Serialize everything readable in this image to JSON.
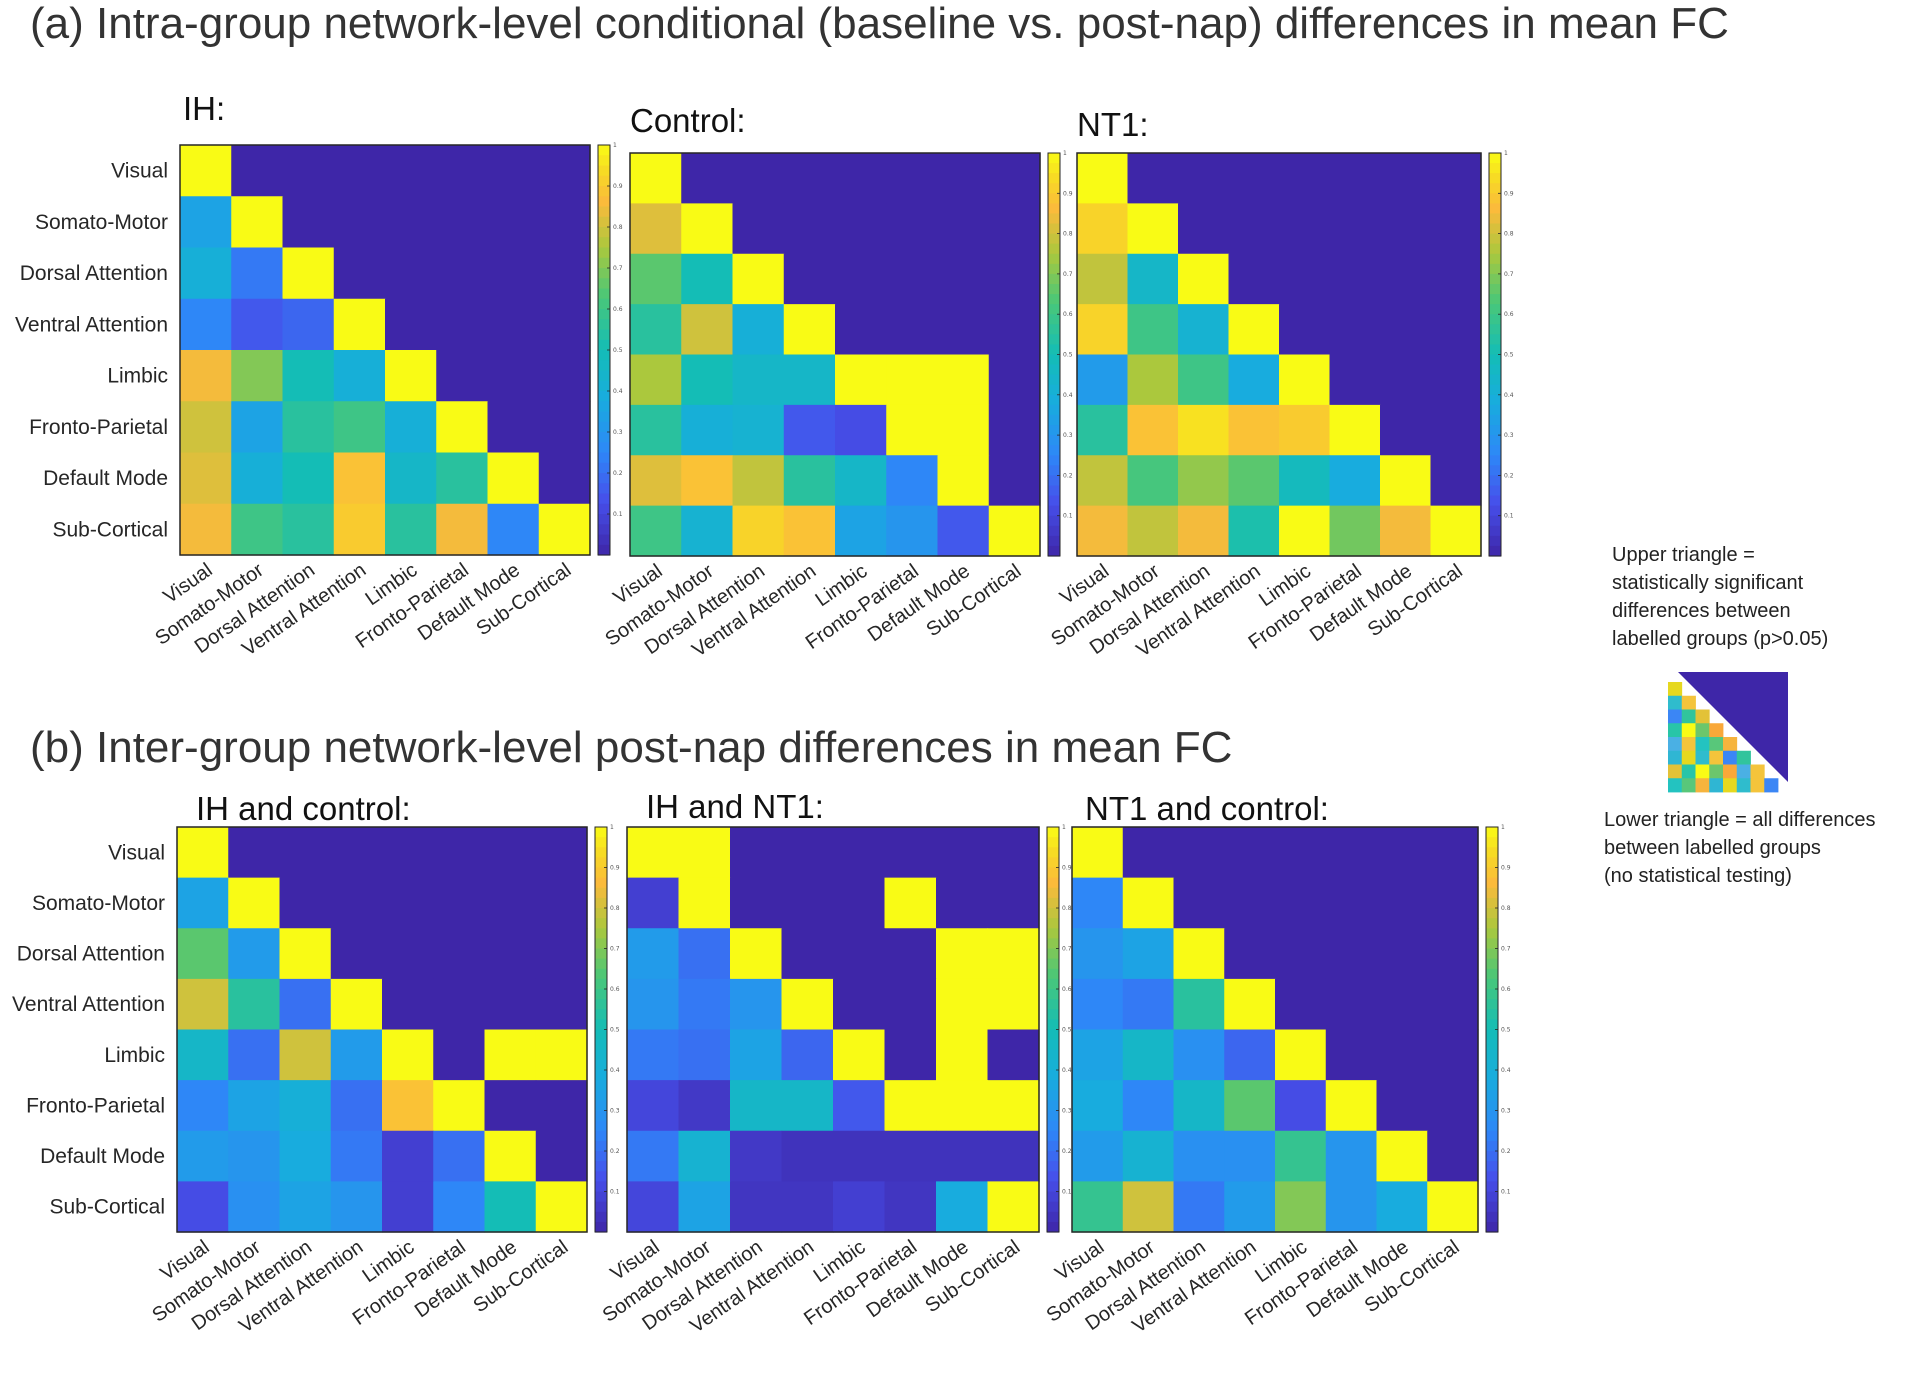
{
  "panel_a_title": "(a) Intra-group network-level conditional (baseline vs. post-nap) differences in mean FC",
  "panel_b_title": "(b) Inter-group network-level post-nap differences in mean FC",
  "colors": {
    "low": "#3e26a8",
    "mid": "#14b7c5",
    "high": "#f9fb15",
    "plot_bg": "#3e26a8"
  },
  "legend": {
    "upper_text": [
      "Upper triangle =",
      "statistically significant",
      "differences between",
      "labelled groups (p>0.05)"
    ],
    "lower_text": [
      "Lower triangle = all differences",
      "between labelled groups",
      " (no statistical testing)"
    ],
    "icon_lower_colors": [
      "#e6d81f",
      "#2fbccd",
      "#f4c43b",
      "#3b86f5",
      "#31c49c",
      "#e3c237",
      "#28c5a8",
      "#f9fb15",
      "#6cc66c",
      "#f9a839",
      "#4ab0e4",
      "#f4c43b",
      "#23c3c0",
      "#58c77a",
      "#f6b43d",
      "#2fb6d3"
    ]
  },
  "chart_data": [
    {
      "type": "heatmap",
      "title": "IH:",
      "panel": "a",
      "row_labels": [
        "Visual",
        "Somato-Motor",
        "Dorsal Attention",
        "Ventral Attention",
        "Limbic",
        "Fronto-Parietal",
        "Default Mode",
        "Sub-Cortical"
      ],
      "col_labels": [
        "Visual",
        "Somato-Motor",
        "Dorsal Attention",
        "Ventral Attention",
        "Limbic",
        "Fronto-Parietal",
        "Default Mode",
        "Sub-Cortical"
      ],
      "colorbar": {
        "min": 0,
        "max": 1,
        "ticks": [
          0.1,
          0.2,
          0.3,
          0.4,
          0.5,
          0.6,
          0.7,
          0.8,
          0.9,
          1
        ]
      },
      "values": [
        [
          1,
          0,
          0,
          0,
          0,
          0,
          0,
          0
        ],
        [
          0.35,
          1,
          0,
          0,
          0,
          0,
          0,
          0
        ],
        [
          0.4,
          0.22,
          1,
          0,
          0,
          0,
          0,
          0
        ],
        [
          0.25,
          0.15,
          0.18,
          1,
          0,
          0,
          0,
          0
        ],
        [
          0.85,
          0.7,
          0.5,
          0.4,
          1,
          0,
          0,
          0
        ],
        [
          0.8,
          0.35,
          0.55,
          0.6,
          0.4,
          1,
          0,
          0
        ],
        [
          0.82,
          0.4,
          0.5,
          0.88,
          0.45,
          0.55,
          1,
          0
        ],
        [
          0.85,
          0.6,
          0.55,
          0.9,
          0.55,
          0.85,
          0.25,
          1
        ]
      ]
    },
    {
      "type": "heatmap",
      "title": "Control:",
      "panel": "a",
      "row_labels": [
        "",
        "",
        "",
        "",
        "",
        "",
        "",
        ""
      ],
      "col_labels": [
        "Visual",
        "Somato-Motor",
        "Dorsal Attention",
        "Ventral Attention",
        "Limbic",
        "Fronto-Parietal",
        "Default Mode",
        "Sub-Cortical"
      ],
      "colorbar": {
        "min": 0,
        "max": 1,
        "ticks": [
          0.1,
          0.2,
          0.3,
          0.4,
          0.5,
          0.6,
          0.7,
          0.8,
          0.9,
          1
        ]
      },
      "values": [
        [
          1,
          0,
          0,
          0,
          0,
          0,
          0,
          0
        ],
        [
          0.82,
          1,
          0,
          0,
          0,
          0,
          0,
          0
        ],
        [
          0.65,
          0.5,
          1,
          0,
          0,
          0,
          0,
          0
        ],
        [
          0.55,
          0.8,
          0.4,
          1,
          0,
          0,
          0,
          0
        ],
        [
          0.75,
          0.5,
          0.45,
          0.45,
          1,
          1,
          1,
          0
        ],
        [
          0.55,
          0.4,
          0.42,
          0.15,
          0.12,
          1,
          1,
          0
        ],
        [
          0.82,
          0.88,
          0.78,
          0.55,
          0.45,
          0.25,
          1,
          0
        ],
        [
          0.6,
          0.42,
          0.92,
          0.88,
          0.35,
          0.3,
          0.15,
          1
        ]
      ]
    },
    {
      "type": "heatmap",
      "title": "NT1:",
      "panel": "a",
      "row_labels": [
        "",
        "",
        "",
        "",
        "",
        "",
        "",
        ""
      ],
      "col_labels": [
        "Visual",
        "Somato-Motor",
        "Dorsal Attention",
        "Ventral Attention",
        "Limbic",
        "Fronto-Parietal",
        "Default Mode",
        "Sub-Cortical"
      ],
      "colorbar": {
        "min": 0,
        "max": 1,
        "ticks": [
          0.1,
          0.2,
          0.3,
          0.4,
          0.5,
          0.6,
          0.7,
          0.8,
          0.9,
          1
        ]
      },
      "values": [
        [
          1,
          0,
          0,
          0,
          0,
          0,
          0,
          0
        ],
        [
          0.92,
          1,
          0,
          0,
          0,
          0,
          0,
          0
        ],
        [
          0.78,
          0.45,
          1,
          0,
          0,
          0,
          0,
          0
        ],
        [
          0.92,
          0.6,
          0.42,
          1,
          0,
          0,
          0,
          0
        ],
        [
          0.32,
          0.75,
          0.6,
          0.38,
          1,
          0,
          0,
          0
        ],
        [
          0.55,
          0.88,
          0.95,
          0.88,
          0.9,
          1,
          0,
          0
        ],
        [
          0.78,
          0.62,
          0.72,
          0.65,
          0.48,
          0.38,
          1,
          0
        ],
        [
          0.85,
          0.78,
          0.85,
          0.52,
          1,
          0.68,
          0.85,
          1
        ]
      ]
    },
    {
      "type": "heatmap",
      "title": "IH and control:",
      "panel": "b",
      "row_labels": [
        "Visual",
        "Somato-Motor",
        "Dorsal Attention",
        "Ventral Attention",
        "Limbic",
        "Fronto-Parietal",
        "Default Mode",
        "Sub-Cortical"
      ],
      "col_labels": [
        "Visual",
        "Somato-Motor",
        "Dorsal Attention",
        "Ventral Attention",
        "Limbic",
        "Fronto-Parietal",
        "Default Mode",
        "Sub-Cortical"
      ],
      "colorbar": {
        "min": 0,
        "max": 1,
        "ticks": [
          0.1,
          0.2,
          0.3,
          0.4,
          0.5,
          0.6,
          0.7,
          0.8,
          0.9,
          1
        ]
      },
      "values": [
        [
          1,
          0,
          0,
          0,
          0,
          0,
          0,
          0
        ],
        [
          0.35,
          1,
          0,
          0,
          0,
          0,
          0,
          0
        ],
        [
          0.65,
          0.32,
          1,
          0,
          0,
          0,
          0,
          0
        ],
        [
          0.8,
          0.55,
          0.2,
          1,
          0,
          0,
          0,
          0
        ],
        [
          0.45,
          0.2,
          0.8,
          0.32,
          1,
          0,
          1,
          1
        ],
        [
          0.25,
          0.35,
          0.4,
          0.2,
          0.88,
          1,
          0,
          0
        ],
        [
          0.32,
          0.3,
          0.38,
          0.22,
          0.08,
          0.2,
          1,
          0
        ],
        [
          0.12,
          0.28,
          0.35,
          0.3,
          0.08,
          0.25,
          0.5,
          1
        ]
      ]
    },
    {
      "type": "heatmap",
      "title": "IH and NT1:",
      "panel": "b",
      "row_labels": [
        "",
        "",
        "",
        "",
        "",
        "",
        "",
        ""
      ],
      "col_labels": [
        "Visual",
        "Somato-Motor",
        "Dorsal Attention",
        "Ventral Attention",
        "Limbic",
        "Fronto-Parietal",
        "Default Mode",
        "Sub-Cortical"
      ],
      "colorbar": {
        "min": 0,
        "max": 1,
        "ticks": [
          0.1,
          0.2,
          0.3,
          0.4,
          0.5,
          0.6,
          0.7,
          0.8,
          0.9,
          1
        ]
      },
      "values": [
        [
          1,
          1,
          0,
          0,
          0,
          0,
          0,
          0
        ],
        [
          0.08,
          1,
          0,
          0,
          0,
          1,
          0,
          0
        ],
        [
          0.32,
          0.2,
          1,
          0,
          0,
          0,
          1,
          1
        ],
        [
          0.3,
          0.22,
          0.3,
          1,
          0,
          0,
          1,
          1
        ],
        [
          0.22,
          0.2,
          0.35,
          0.18,
          1,
          0,
          1,
          0
        ],
        [
          0.1,
          0.06,
          0.45,
          0.45,
          0.15,
          1,
          1,
          1
        ],
        [
          0.22,
          0.42,
          0.06,
          0.04,
          0.04,
          0.04,
          0.04,
          0.04
        ],
        [
          0.1,
          0.35,
          0.05,
          0.05,
          0.08,
          0.05,
          0.38,
          1
        ]
      ]
    },
    {
      "type": "heatmap",
      "title": "NT1 and control:",
      "panel": "b",
      "row_labels": [
        "",
        "",
        "",
        "",
        "",
        "",
        "",
        ""
      ],
      "col_labels": [
        "Visual",
        "Somato-Motor",
        "Dorsal Attention",
        "Ventral Attention",
        "Limbic",
        "Fronto-Parietal",
        "Default Mode",
        "Sub-Cortical"
      ],
      "colorbar": {
        "min": 0,
        "max": 1,
        "ticks": [
          0.1,
          0.2,
          0.3,
          0.4,
          0.5,
          0.6,
          0.7,
          0.8,
          0.9,
          1
        ]
      },
      "values": [
        [
          1,
          0,
          0,
          0,
          0,
          0,
          0,
          0
        ],
        [
          0.25,
          1,
          0,
          0,
          0,
          0,
          0,
          0
        ],
        [
          0.3,
          0.35,
          1,
          0,
          0,
          0,
          0,
          0
        ],
        [
          0.25,
          0.22,
          0.55,
          1,
          0,
          0,
          0,
          0
        ],
        [
          0.35,
          0.45,
          0.28,
          0.18,
          1,
          0,
          0,
          0
        ],
        [
          0.38,
          0.25,
          0.45,
          0.65,
          0.12,
          1,
          0,
          0
        ],
        [
          0.32,
          0.42,
          0.28,
          0.28,
          0.58,
          0.3,
          1,
          0
        ],
        [
          0.58,
          0.8,
          0.22,
          0.32,
          0.7,
          0.3,
          0.38,
          1
        ]
      ]
    }
  ]
}
